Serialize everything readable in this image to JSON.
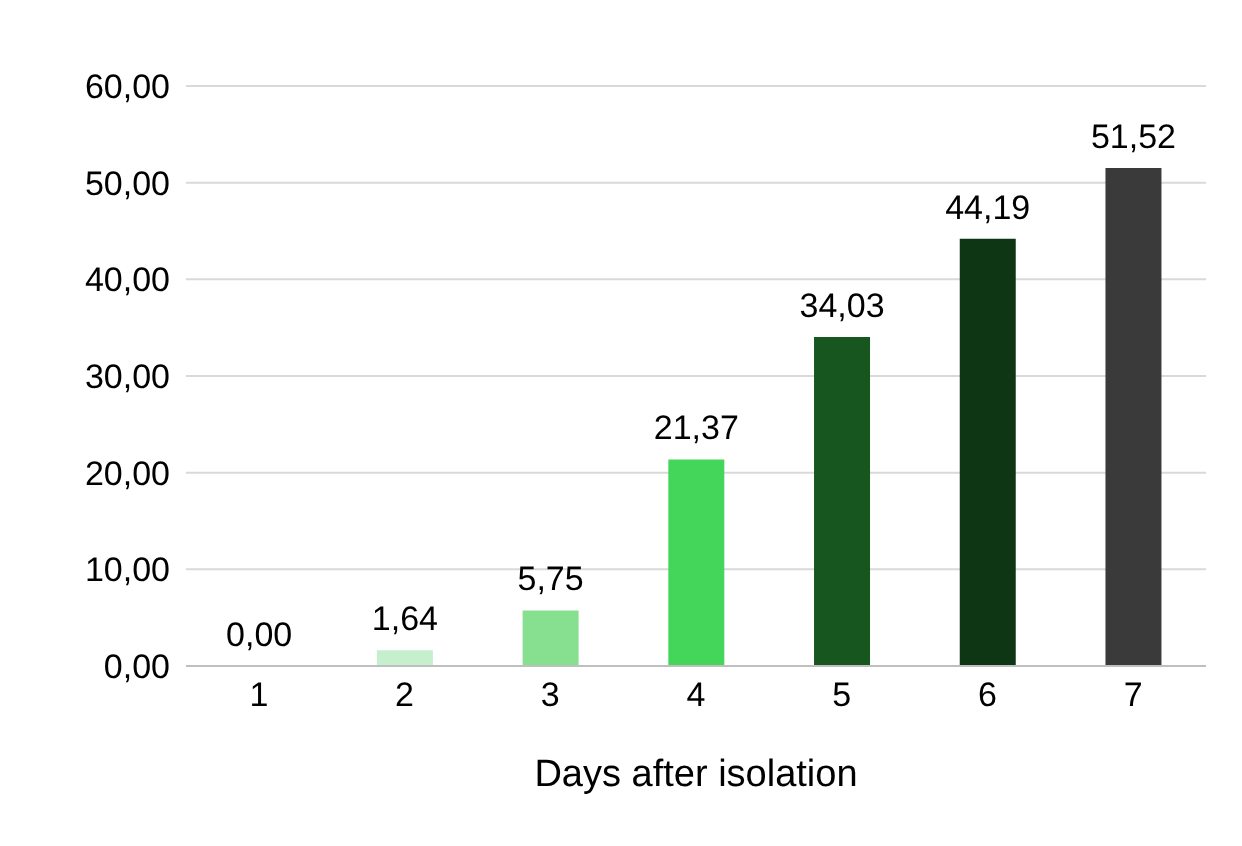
{
  "chart_data": {
    "type": "bar",
    "xlabel": "Days after isolation",
    "categories": [
      "1",
      "2",
      "3",
      "4",
      "5",
      "6",
      "7"
    ],
    "values": [
      0,
      1.64,
      5.75,
      21.37,
      34.03,
      44.19,
      51.52
    ],
    "colors": [
      "#c6efce",
      "#c6efce",
      "#86e08f",
      "#44d65a",
      "#17561f",
      "#0e3614",
      "#3a3a3a"
    ],
    "value_labels": [
      "0,00",
      "1,64",
      "5,75",
      "21,37",
      "34,03",
      "44,19",
      "51,52"
    ],
    "ylim": [
      0,
      60
    ],
    "yticks": [
      {
        "value": 0,
        "label": "0,00"
      },
      {
        "value": 10,
        "label": "10,00"
      },
      {
        "value": 20,
        "label": "20,00"
      },
      {
        "value": 30,
        "label": "30,00"
      },
      {
        "value": 40,
        "label": "40,00"
      },
      {
        "value": 50,
        "label": "50,00"
      },
      {
        "value": 60,
        "label": "60,00"
      }
    ],
    "grid": "y",
    "legend": false
  }
}
